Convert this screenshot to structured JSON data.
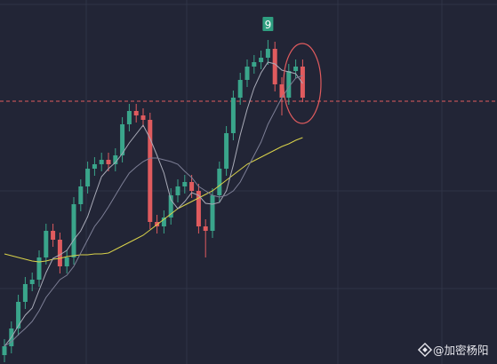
{
  "chart_data": {
    "type": "candlestick",
    "ylim": [
      0,
      410
    ],
    "up_color": "#3aa58b",
    "down_color": "#e05b5e",
    "open": [
      10,
      20,
      40,
      70,
      90,
      95,
      120,
      150,
      140,
      110,
      120,
      180,
      200,
      220,
      225,
      230,
      225,
      235,
      270,
      285,
      280,
      275,
      160,
      155,
      165,
      190,
      200,
      205,
      195,
      155,
      150,
      190,
      220,
      260,
      300,
      320,
      335,
      340,
      345,
      355,
      315,
      300,
      330,
      335
    ],
    "close": [
      20,
      40,
      70,
      90,
      95,
      120,
      150,
      140,
      110,
      120,
      180,
      200,
      220,
      225,
      230,
      225,
      235,
      270,
      285,
      280,
      275,
      160,
      155,
      165,
      190,
      200,
      205,
      195,
      155,
      150,
      190,
      220,
      260,
      300,
      320,
      335,
      340,
      345,
      355,
      315,
      300,
      330,
      335,
      300
    ],
    "high": [
      28,
      48,
      78,
      98,
      103,
      128,
      158,
      158,
      148,
      128,
      188,
      208,
      228,
      233,
      238,
      238,
      243,
      278,
      293,
      293,
      288,
      283,
      168,
      173,
      198,
      208,
      213,
      213,
      203,
      163,
      198,
      228,
      268,
      308,
      328,
      343,
      348,
      353,
      365,
      363,
      323,
      338,
      343,
      343
    ],
    "low": [
      2,
      12,
      32,
      62,
      82,
      87,
      112,
      132,
      102,
      102,
      112,
      172,
      192,
      212,
      217,
      217,
      217,
      227,
      262,
      272,
      267,
      152,
      147,
      147,
      157,
      182,
      192,
      187,
      147,
      120,
      142,
      182,
      212,
      252,
      292,
      312,
      327,
      332,
      337,
      307,
      280,
      292,
      322,
      295
    ],
    "series": [
      {
        "color": "#d9d24a",
        "values": [
          124,
          122,
          120,
          118,
          116,
          115,
          116,
          118,
          119,
          121,
          122,
          123,
          123,
          124,
          124,
          125,
          129,
          133,
          137,
          141,
          145,
          151,
          157,
          163,
          169,
          175,
          179,
          183,
          187,
          191,
          195,
          201,
          207,
          213,
          219,
          225,
          229,
          233,
          237,
          241,
          245,
          248,
          252,
          255
        ]
      },
      {
        "color": "#a9abb8",
        "values": [
          20,
          30,
          43,
          55,
          63,
          83,
          103,
          119,
          123,
          128,
          140,
          150,
          166,
          189,
          211,
          220,
          227,
          237,
          249,
          259,
          269,
          254,
          235,
          215,
          185,
          175,
          183,
          193,
          190,
          181,
          180,
          182,
          195,
          224,
          258,
          287,
          311,
          328,
          340,
          338,
          331,
          329,
          327,
          316
        ]
      },
      {
        "color": "#7d7f96",
        "values": [
          20,
          25,
          33,
          40,
          48,
          60,
          75,
          85,
          95,
          100,
          110,
          125,
          140,
          155,
          165,
          177,
          190,
          203,
          215,
          222,
          228,
          232,
          232,
          230,
          228,
          225,
          217,
          210,
          200,
          195,
          190,
          188,
          190,
          195,
          205,
          220,
          235,
          250,
          270,
          285,
          300,
          312,
          322,
          325
        ]
      }
    ],
    "reference_line": 296,
    "signal_label": "9",
    "watermark": "@加密杨阳"
  }
}
